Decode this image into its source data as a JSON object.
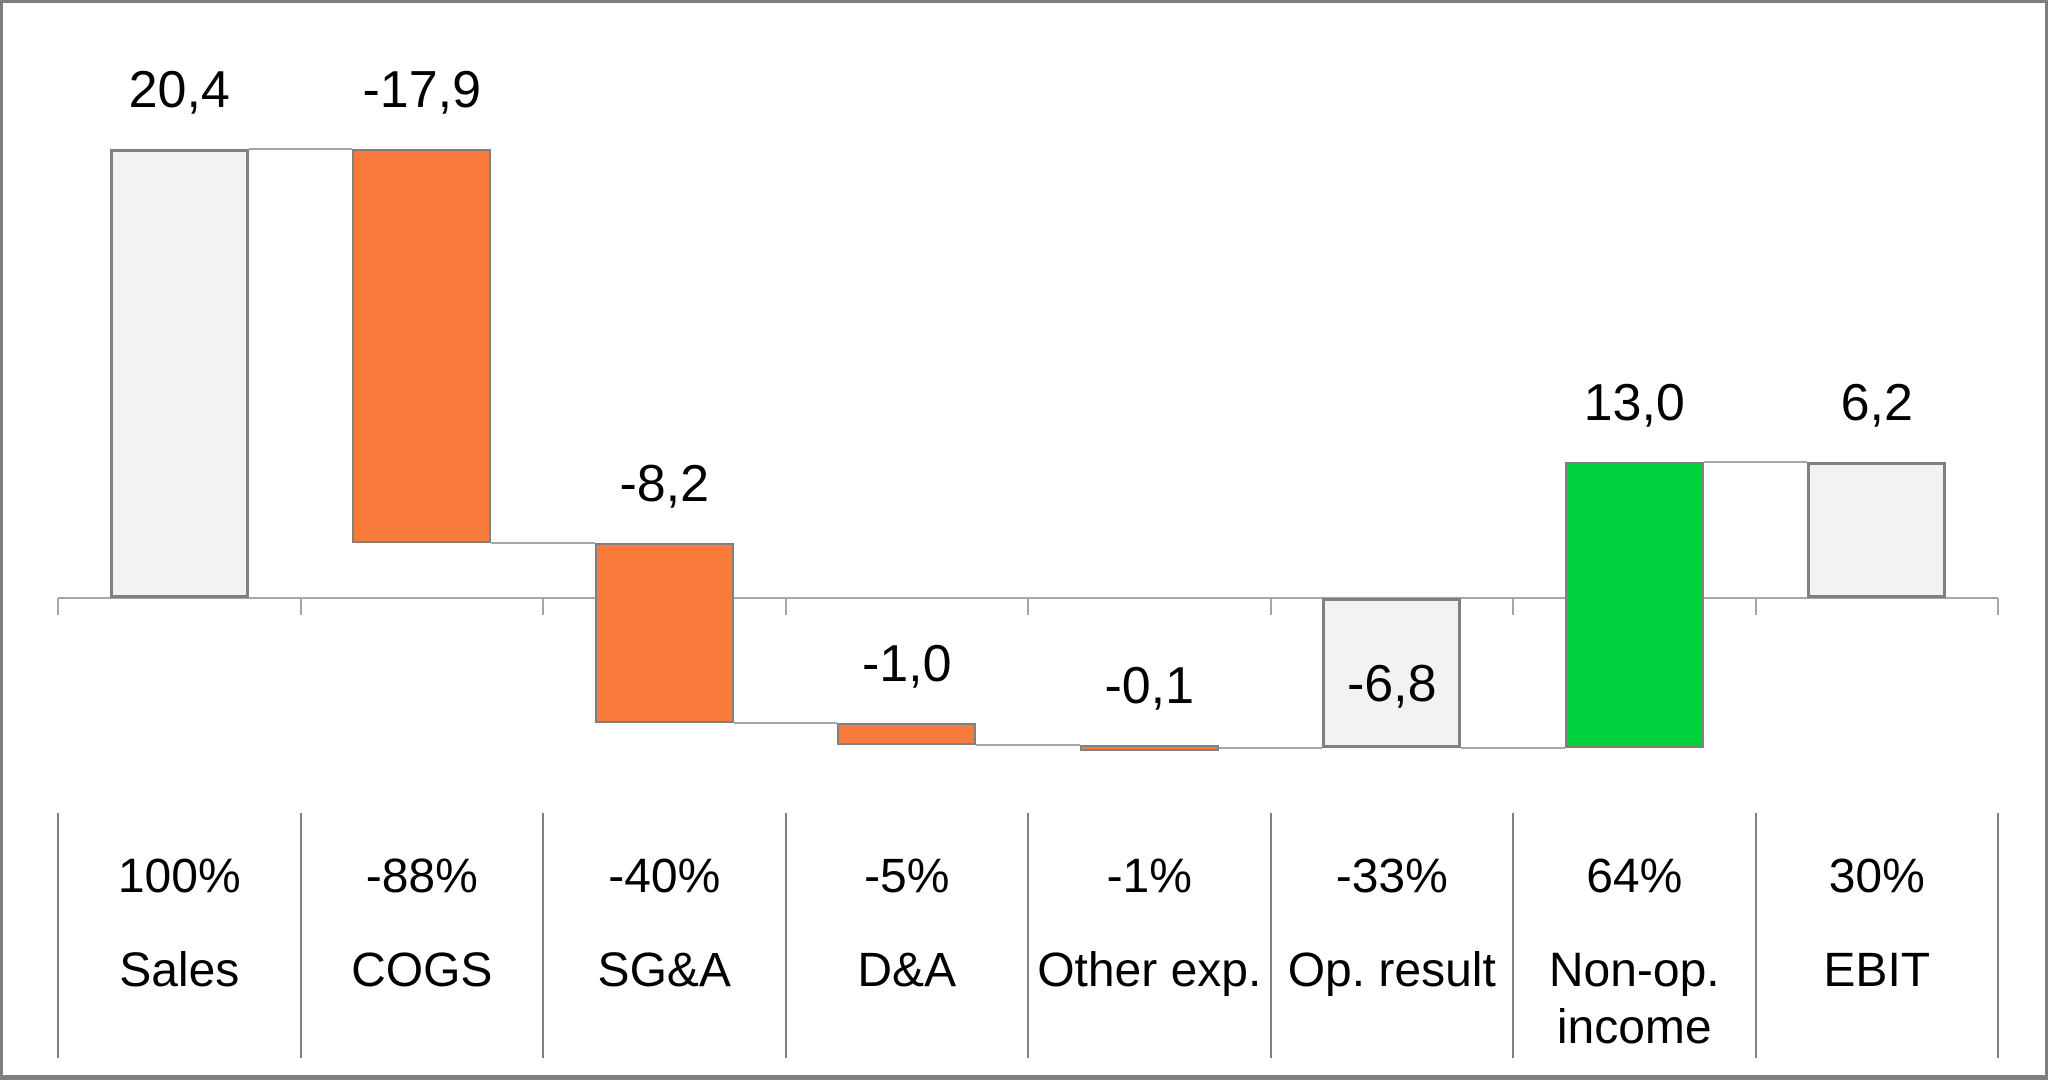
{
  "chart_data": {
    "type": "bar",
    "subtype": "waterfall",
    "title": "",
    "xlabel": "",
    "ylabel": "",
    "decimal_separator": ",",
    "grid": false,
    "legend": false,
    "baseline_value": 0,
    "ylim": [
      -9,
      22
    ],
    "categories": [
      {
        "label": "Sales",
        "percent": "100%",
        "value": 20.4,
        "value_label": "20,4",
        "kind": "total"
      },
      {
        "label": "COGS",
        "percent": "-88%",
        "value": -17.9,
        "value_label": "-17,9",
        "kind": "delta"
      },
      {
        "label": "SG&A",
        "percent": "-40%",
        "value": -8.2,
        "value_label": "-8,2",
        "kind": "delta"
      },
      {
        "label": "D&A",
        "percent": "-5%",
        "value": -1.0,
        "value_label": "-1,0",
        "kind": "delta"
      },
      {
        "label": "Other exp.",
        "percent": "-1%",
        "value": -0.1,
        "value_label": "-0,1",
        "kind": "delta"
      },
      {
        "label": "Op. result",
        "percent": "-33%",
        "value": -6.8,
        "value_label": "-6,8",
        "kind": "total",
        "label_inside": true
      },
      {
        "label": "Non-op. income",
        "percent": "64%",
        "value": 13.0,
        "value_label": "13,0",
        "kind": "delta"
      },
      {
        "label": "EBIT",
        "percent": "30%",
        "value": 6.2,
        "value_label": "6,2",
        "kind": "total"
      }
    ],
    "colors": {
      "total_fill": "#F2F2F2",
      "increase_fill": "#00D23E",
      "decrease_fill": "#F87B3C",
      "bar_border": "#808080",
      "connector_line": "#A6A6A6",
      "axis_line": "#A6A6A6",
      "separator_line": "#808080",
      "frame_border": "#7F7F7F",
      "text": "#000000"
    }
  }
}
